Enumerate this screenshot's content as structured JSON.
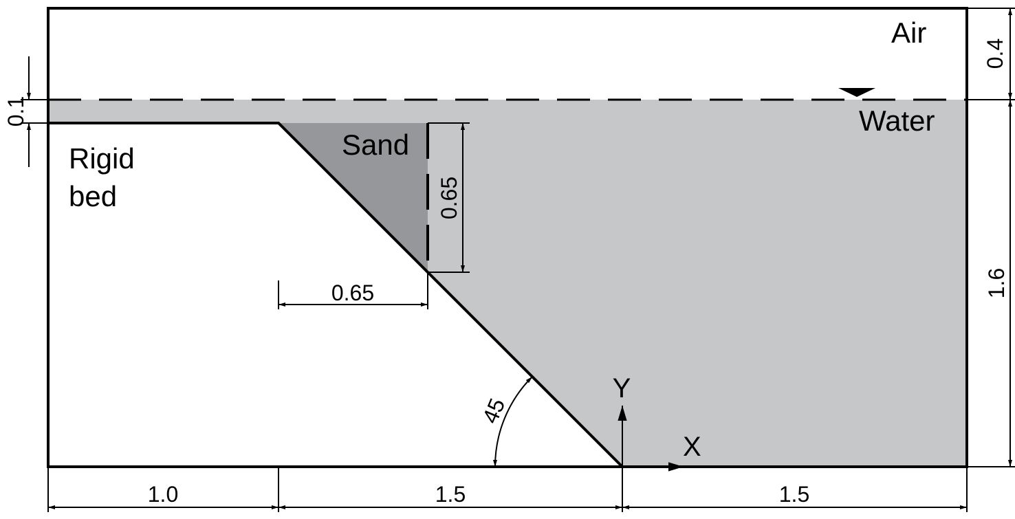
{
  "regions": {
    "air": "Air",
    "water": "Water",
    "sand": "Sand",
    "rigid_bed_line1": "Rigid",
    "rigid_bed_line2": "bed"
  },
  "dimensions": {
    "sand_height": "0.65",
    "sand_width": "0.65",
    "air_height": "0.4",
    "water_depth": "1.6",
    "top_bed_offset": "0.1",
    "bottom_left": "1.0",
    "bottom_middle": "1.5",
    "bottom_right": "1.5",
    "slope_angle": "45"
  },
  "axes": {
    "x": "X",
    "y": "Y"
  },
  "colors": {
    "water": "#c6c7c9",
    "sand": "#96979a",
    "line": "#000000"
  }
}
